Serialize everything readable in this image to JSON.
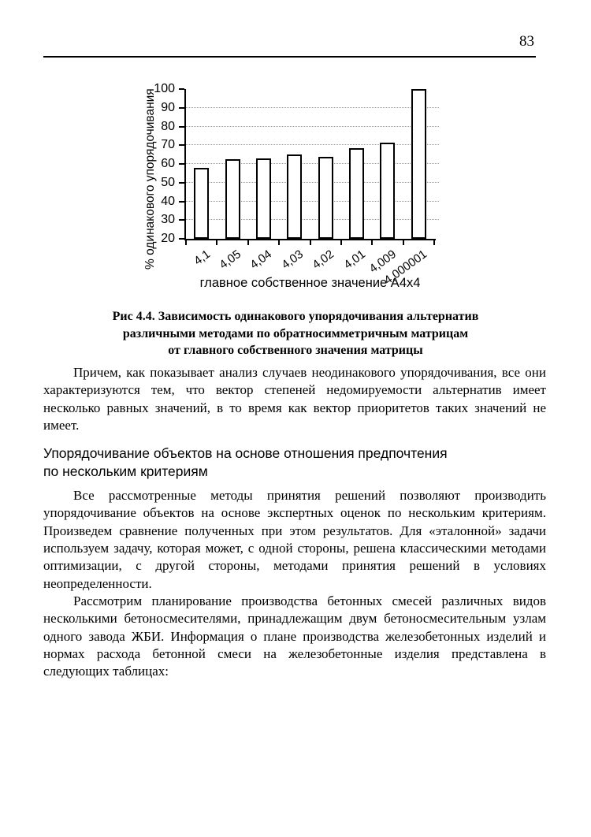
{
  "page": {
    "number": "83"
  },
  "chart_data": {
    "type": "bar",
    "categories": [
      "4,1",
      "4,05",
      "4,04",
      "4,03",
      "4,02",
      "4,01",
      "4,009",
      "4,000001"
    ],
    "values": [
      58,
      62.5,
      63,
      65,
      64,
      68.5,
      71.5,
      100
    ],
    "title": "",
    "xlabel": "главное собственное значение А4х4",
    "ylabel": "% одинакового упорядочивания",
    "ylim": [
      20,
      100
    ],
    "ytick_step": 10,
    "grid": true,
    "legend": "none",
    "bar_fill": "#ffffff",
    "bar_border": "#000000",
    "gridline_color": "#9a9a9a"
  },
  "figure_caption": {
    "lines": [
      "Рис 4.4. Зависимость одинакового упорядочивания альтернатив",
      "различными методами по обратносимметричным матрицам",
      "от главного собственного значения матрицы"
    ]
  },
  "section_heading": {
    "lines": [
      "Упорядочивание объектов на основе отношения предпочтения",
      "по нескольким критериям"
    ]
  },
  "paragraphs": {
    "p1": "Причем, как показывает анализ случаев неодинакового упорядочивания, все они характеризуются тем, что вектор степеней недомируемости альтернатив имеет несколько равных значений, в то время как вектор приоритетов таких значений не имеет.",
    "p2": "Все рассмотренные методы принятия решений позволяют производить упорядочивание объектов на основе экспертных оценок по нескольким критериям. Произведем сравнение полученных при этом результатов. Для «эталонной» задачи используем задачу, которая может, с одной стороны, решена классическими методами оптимизации, с другой стороны, методами принятия решений в условиях неопределенности.",
    "p3": "Рассмотрим планирование производства бетонных смесей различных видов несколькими бетоносмесителями, принадлежащим двум бетоносмесительным узлам одного завода ЖБИ. Информация о плане производства железобетонных изделий и нормах расхода бетонной смеси на железобетонные изделия представлена в следующих таблицах:"
  }
}
